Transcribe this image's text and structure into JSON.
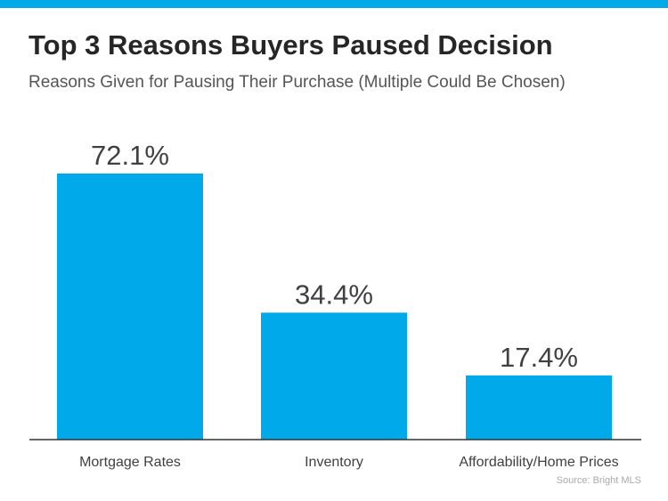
{
  "title": "Top 3 Reasons Buyers Paused Decision",
  "subtitle": "Reasons Given for Pausing Their Purchase (Multiple Could Be Chosen)",
  "source": "Source: Bright MLS",
  "colors": {
    "accent": "#00a9e8",
    "bar": "#00aaea",
    "axis": "#333333",
    "value_label": "#404040",
    "category_label": "#404040"
  },
  "chart_data": {
    "type": "bar",
    "categories": [
      "Mortgage Rates",
      "Inventory",
      "Affordability/Home Prices"
    ],
    "values": [
      72.1,
      34.4,
      17.4
    ],
    "value_labels": [
      "72.1%",
      "34.4%",
      "17.4%"
    ],
    "title": "Top 3 Reasons Buyers Paused Decision",
    "subtitle": "Reasons Given for Pausing Their Purchase (Multiple Could Be Chosen)",
    "xlabel": "",
    "ylabel": "",
    "ylim": [
      0,
      72.1
    ],
    "grid": false,
    "legend": "none"
  }
}
